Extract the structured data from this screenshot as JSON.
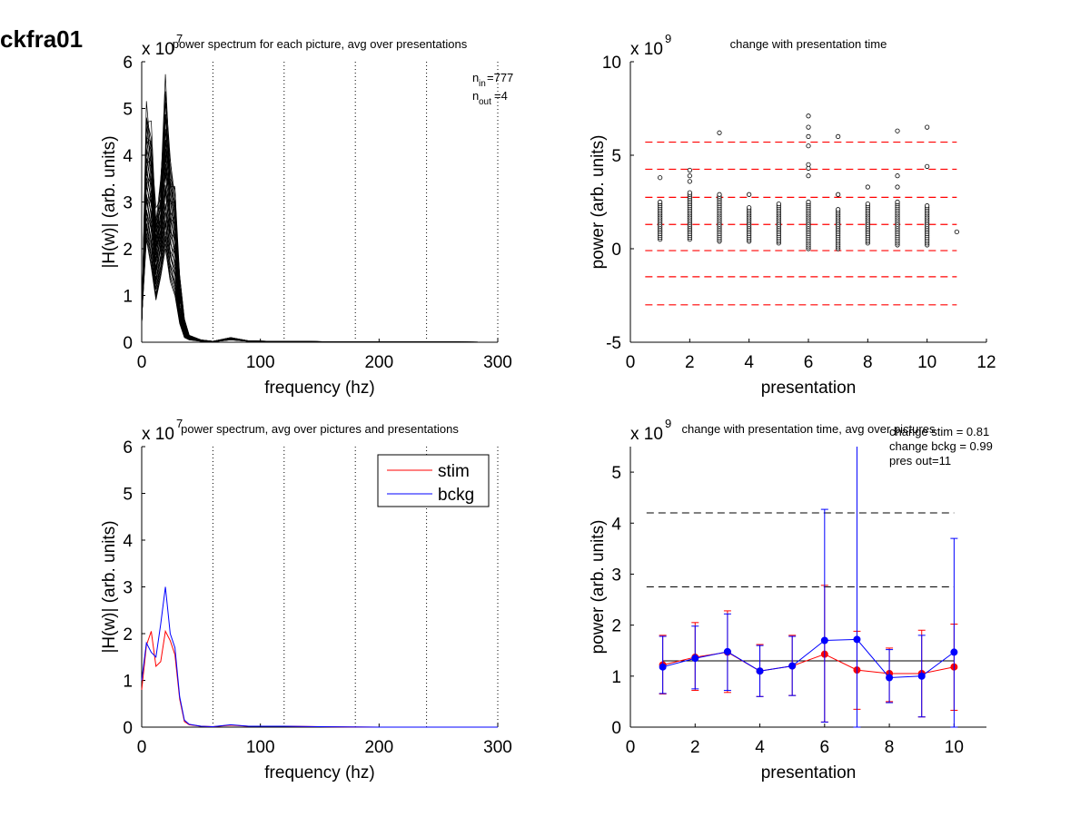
{
  "figure_title": "ckfra01",
  "chart_data": [
    {
      "id": "p1",
      "type": "line",
      "title": "power spectrum for each picture, avg over presentations",
      "xlabel": "frequency (hz)",
      "ylabel": "|H(w)| (arb. units)",
      "y_multiplier": {
        "base": "x 10",
        "exp": "7"
      },
      "xlim": [
        0,
        300
      ],
      "ylim": [
        0,
        6
      ],
      "xticks": [
        "0",
        "100",
        "200",
        "300"
      ],
      "yticks": [
        "0",
        "1",
        "2",
        "3",
        "4",
        "5",
        "6"
      ],
      "vlines": [
        60,
        120,
        180,
        240,
        300
      ],
      "annotation": {
        "n_in_label": "n",
        "n_in_sub": "in",
        "n_in_value": "=777",
        "n_out_label": "n",
        "n_out_sub": "out",
        "n_out_value": "=4"
      },
      "series": [
        {
          "x": [
            0,
            4,
            8,
            12,
            16,
            20,
            24,
            28,
            32,
            36,
            40,
            50,
            60,
            75,
            90,
            110,
            130,
            160,
            200,
            250,
            300
          ],
          "values": [
            0.3,
            5.0,
            4.4,
            2.6,
            3.4,
            5.4,
            3.8,
            3.2,
            1.2,
            0.5,
            0.15,
            0.05,
            0.02,
            0.1,
            0.03,
            0.02,
            0.02,
            0.01,
            0.01,
            0.01,
            0.0
          ]
        },
        {
          "x": [
            0,
            4,
            8,
            12,
            16,
            20,
            24,
            28,
            32,
            36,
            40,
            50,
            60,
            75,
            90,
            110,
            130,
            160,
            200,
            250,
            300
          ],
          "values": [
            0.5,
            2.2,
            1.6,
            0.9,
            1.4,
            2.0,
            1.3,
            1.0,
            0.4,
            0.1,
            0.05,
            0.02,
            0.01,
            0.05,
            0.02,
            0.01,
            0.01,
            0.01,
            0.0,
            0.0,
            0.0
          ]
        }
      ]
    },
    {
      "id": "p2",
      "type": "scatter",
      "title": "change with presentation time",
      "xlabel": "presentation",
      "ylabel": "power (arb. units)",
      "y_multiplier": {
        "base": "x 10",
        "exp": "9"
      },
      "xlim": [
        0,
        12
      ],
      "ylim": [
        -5,
        10
      ],
      "xticks": [
        "0",
        "2",
        "4",
        "6",
        "8",
        "10",
        "12"
      ],
      "yticks": [
        "-5",
        "0",
        "5",
        "10"
      ],
      "hlines_dashed_red": [
        5.7,
        4.25,
        2.75,
        1.3,
        -0.1,
        -1.5,
        -3.0
      ],
      "outliers": [
        {
          "x": 1,
          "y": 3.8
        },
        {
          "x": 2,
          "y": 4.2
        },
        {
          "x": 2,
          "y": 3.9
        },
        {
          "x": 2,
          "y": 3.6
        },
        {
          "x": 3,
          "y": 6.2
        },
        {
          "x": 3,
          "y": 2.9
        },
        {
          "x": 4,
          "y": 2.9
        },
        {
          "x": 6,
          "y": 7.1
        },
        {
          "x": 6,
          "y": 6.5
        },
        {
          "x": 6,
          "y": 6.0
        },
        {
          "x": 6,
          "y": 5.5
        },
        {
          "x": 6,
          "y": 4.5
        },
        {
          "x": 6,
          "y": 4.3
        },
        {
          "x": 6,
          "y": 3.9
        },
        {
          "x": 7,
          "y": 6.0
        },
        {
          "x": 7,
          "y": 2.9
        },
        {
          "x": 8,
          "y": 3.3
        },
        {
          "x": 9,
          "y": 6.3
        },
        {
          "x": 9,
          "y": 3.9
        },
        {
          "x": 9,
          "y": 3.3
        },
        {
          "x": 10,
          "y": 6.5
        },
        {
          "x": 10,
          "y": 4.4
        },
        {
          "x": 11,
          "y": 0.9
        }
      ],
      "columns": [
        {
          "x": 1,
          "ymin": 0.5,
          "ymax": 2.5
        },
        {
          "x": 2,
          "ymin": 0.5,
          "ymax": 3.0
        },
        {
          "x": 3,
          "ymin": 0.4,
          "ymax": 2.8
        },
        {
          "x": 4,
          "ymin": 0.4,
          "ymax": 2.2
        },
        {
          "x": 5,
          "ymin": 0.3,
          "ymax": 2.4
        },
        {
          "x": 6,
          "ymin": 0.0,
          "ymax": 2.5
        },
        {
          "x": 7,
          "ymin": 0.0,
          "ymax": 2.1
        },
        {
          "x": 8,
          "ymin": 0.3,
          "ymax": 2.4
        },
        {
          "x": 9,
          "ymin": 0.2,
          "ymax": 2.5
        },
        {
          "x": 10,
          "ymin": 0.2,
          "ymax": 2.3
        }
      ]
    },
    {
      "id": "p3",
      "type": "line",
      "title": "power spectrum, avg over pictures and presentations",
      "xlabel": "frequency (hz)",
      "ylabel": "|H(w)| (arb. units)",
      "y_multiplier": {
        "base": "x 10",
        "exp": "7"
      },
      "xlim": [
        0,
        300
      ],
      "ylim": [
        0,
        6
      ],
      "xticks": [
        "0",
        "100",
        "200",
        "300"
      ],
      "yticks": [
        "0",
        "1",
        "2",
        "3",
        "4",
        "5",
        "6"
      ],
      "vlines": [
        60,
        120,
        180,
        240,
        300
      ],
      "legend": {
        "placement": "top-right"
      },
      "series": [
        {
          "name": "stim",
          "color": "#ff0000",
          "x": [
            0,
            4,
            8,
            12,
            16,
            20,
            24,
            28,
            32,
            36,
            40,
            50,
            60,
            75,
            90,
            120,
            150,
            200,
            250,
            300
          ],
          "values": [
            0.8,
            1.75,
            2.05,
            1.3,
            1.4,
            2.05,
            1.85,
            1.55,
            0.6,
            0.12,
            0.05,
            0.02,
            0.01,
            0.04,
            0.02,
            0.02,
            0.01,
            0.0,
            0.0,
            0.0
          ]
        },
        {
          "name": "bckg",
          "color": "#0000ff",
          "x": [
            0,
            4,
            8,
            12,
            16,
            20,
            24,
            28,
            32,
            36,
            40,
            50,
            60,
            75,
            90,
            120,
            150,
            200,
            250,
            300
          ],
          "values": [
            1.0,
            1.8,
            1.6,
            1.5,
            2.2,
            3.0,
            2.0,
            1.7,
            0.65,
            0.15,
            0.06,
            0.02,
            0.01,
            0.05,
            0.02,
            0.02,
            0.01,
            0.0,
            0.0,
            0.0
          ]
        }
      ]
    },
    {
      "id": "p4",
      "type": "line",
      "title": "change with presentation time, avg over pictures",
      "xlabel": "presentation",
      "ylabel": "power (arb. units)",
      "y_multiplier": {
        "base": "x 10",
        "exp": "9"
      },
      "xlim": [
        0,
        11
      ],
      "ylim": [
        0,
        5.5
      ],
      "xticks": [
        "0",
        "2",
        "4",
        "6",
        "8",
        "10"
      ],
      "yticks": [
        "0",
        "1",
        "2",
        "3",
        "4",
        "5"
      ],
      "annotations": [
        "change stim = 0.81",
        "change bckg = 0.99",
        "pres out=11"
      ],
      "hlines_dashed_black": [
        4.2,
        2.75
      ],
      "hline_solid_black": 1.3,
      "series": [
        {
          "name": "stim",
          "color": "#ff0000",
          "x": [
            1,
            2,
            3,
            4,
            5,
            6,
            7,
            8,
            9,
            10
          ],
          "values": [
            1.22,
            1.37,
            1.47,
            1.1,
            1.2,
            1.43,
            1.12,
            1.05,
            1.05,
            1.18
          ],
          "err_low": [
            0.65,
            0.72,
            0.68,
            0.6,
            0.62,
            0.1,
            0.35,
            0.5,
            0.2,
            0.33
          ],
          "err_high": [
            1.8,
            2.05,
            2.28,
            1.62,
            1.8,
            2.78,
            1.88,
            1.55,
            1.9,
            2.02
          ]
        },
        {
          "name": "bckg",
          "color": "#0000ff",
          "x": [
            1,
            2,
            3,
            4,
            5,
            6,
            7,
            8,
            9,
            10
          ],
          "values": [
            1.18,
            1.35,
            1.48,
            1.1,
            1.2,
            1.7,
            1.72,
            0.97,
            1.0,
            1.47
          ],
          "err_low": [
            0.66,
            0.75,
            0.72,
            0.6,
            0.62,
            0.1,
            0.0,
            0.48,
            0.2,
            0.0
          ],
          "err_high": [
            1.78,
            1.98,
            2.22,
            1.6,
            1.78,
            4.27,
            5.5,
            1.52,
            1.8,
            3.7
          ]
        }
      ]
    }
  ]
}
